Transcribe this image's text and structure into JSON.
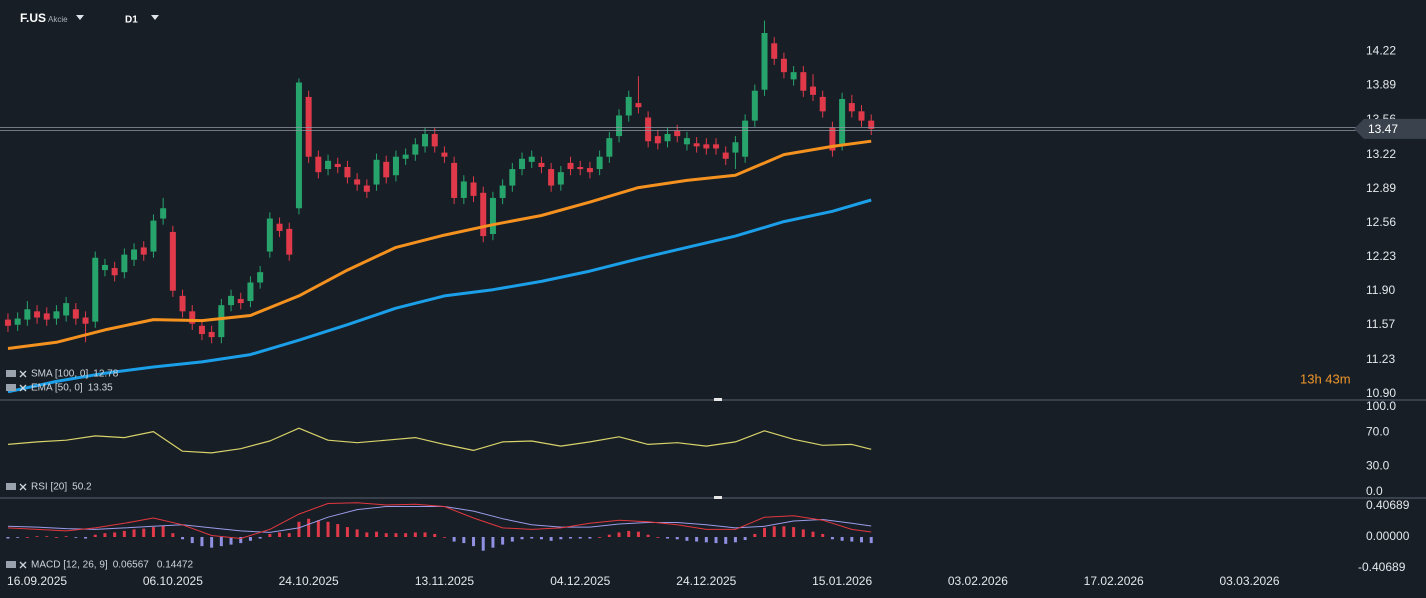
{
  "header": {
    "symbol": "F.US",
    "asset_type": "Akcie",
    "timeframe": "D1"
  },
  "chart_data": [
    {
      "type": "candlestick",
      "open": [
        11.62,
        11.57,
        11.62,
        11.7,
        11.68,
        11.63,
        11.66,
        11.72,
        11.64,
        11.6,
        12.1,
        12.12,
        12.08,
        12.2,
        12.32,
        12.28,
        12.6,
        12.47,
        11.85,
        11.7,
        11.56,
        11.5,
        11.45,
        11.76,
        11.82,
        11.8,
        11.98,
        12.28,
        12.55,
        12.5,
        12.7,
        13.78,
        13.2,
        13.08,
        13.13,
        13.1,
        12.98,
        12.92,
        12.93,
        13.15,
        13.02,
        13.18,
        13.22,
        13.3,
        13.42,
        13.24,
        13.14,
        12.8,
        12.95,
        12.85,
        12.45,
        12.8,
        12.92,
        13.08,
        13.15,
        13.14,
        13.08,
        12.93,
        13.14,
        13.1,
        13.09,
        13.08,
        13.2,
        13.4,
        13.6,
        13.72,
        13.58,
        13.4,
        13.35,
        13.45,
        13.32,
        13.33,
        13.32,
        13.32,
        13.24,
        13.24,
        13.2,
        13.55,
        13.85,
        14.3,
        14.15,
        13.95,
        14.02,
        13.88,
        13.78,
        13.48,
        13.32,
        13.72,
        13.64,
        13.55
      ],
      "high": [
        11.68,
        11.69,
        11.8,
        11.76,
        11.74,
        11.76,
        11.84,
        11.78,
        11.7,
        12.28,
        12.21,
        12.18,
        12.31,
        12.36,
        12.38,
        12.64,
        12.8,
        12.53,
        11.91,
        11.76,
        11.62,
        11.56,
        11.82,
        11.91,
        11.88,
        12.04,
        12.14,
        12.66,
        12.61,
        12.56,
        13.96,
        13.84,
        13.26,
        13.22,
        13.19,
        13.16,
        13.04,
        12.98,
        13.23,
        13.21,
        13.26,
        13.28,
        13.38,
        13.48,
        13.48,
        13.3,
        13.2,
        13.02,
        13.01,
        12.91,
        12.86,
        12.98,
        13.14,
        13.24,
        13.26,
        13.2,
        13.14,
        13.11,
        13.2,
        13.16,
        13.15,
        13.26,
        13.44,
        13.66,
        13.84,
        13.98,
        13.64,
        13.46,
        13.48,
        13.51,
        13.44,
        13.39,
        13.38,
        13.38,
        13.3,
        13.4,
        13.61,
        13.9,
        14.52,
        14.36,
        14.21,
        14.08,
        14.08,
        14.0,
        13.84,
        13.54,
        13.82,
        13.8,
        13.7,
        13.61
      ],
      "low": [
        11.5,
        11.51,
        11.56,
        11.58,
        11.56,
        11.57,
        11.6,
        11.57,
        11.4,
        11.54,
        12.04,
        11.99,
        12.02,
        12.14,
        12.19,
        12.22,
        12.54,
        11.84,
        11.64,
        11.52,
        11.42,
        11.39,
        11.39,
        11.7,
        11.72,
        11.74,
        11.92,
        12.22,
        12.42,
        12.19,
        12.64,
        13.14,
        12.99,
        13.02,
        13.04,
        12.94,
        12.87,
        12.8,
        12.87,
        12.94,
        12.96,
        13.12,
        13.16,
        13.24,
        13.24,
        13.14,
        12.74,
        12.74,
        12.76,
        12.37,
        12.39,
        12.74,
        12.86,
        13.02,
        13.09,
        13.04,
        12.86,
        12.87,
        13.02,
        13.02,
        12.99,
        13.02,
        13.14,
        13.34,
        13.54,
        13.62,
        13.29,
        13.27,
        13.29,
        13.34,
        13.26,
        13.24,
        13.22,
        13.22,
        13.12,
        13.08,
        13.14,
        13.49,
        13.79,
        14.09,
        13.96,
        13.89,
        13.78,
        13.74,
        13.58,
        13.2,
        13.26,
        13.58,
        13.49,
        13.41
      ],
      "close": [
        11.56,
        11.63,
        11.72,
        11.64,
        11.62,
        11.7,
        11.78,
        11.63,
        11.58,
        12.22,
        12.15,
        12.05,
        12.25,
        12.3,
        12.25,
        12.58,
        12.7,
        11.9,
        11.7,
        11.58,
        11.48,
        11.45,
        11.76,
        11.85,
        11.78,
        11.98,
        12.08,
        12.6,
        12.48,
        12.25,
        13.92,
        13.2,
        13.05,
        13.16,
        13.1,
        13.0,
        12.93,
        12.86,
        13.17,
        13.0,
        13.2,
        13.22,
        13.32,
        13.42,
        13.3,
        13.2,
        12.8,
        12.96,
        12.82,
        12.43,
        12.8,
        12.92,
        13.08,
        13.18,
        13.2,
        13.1,
        12.92,
        13.05,
        13.08,
        13.08,
        13.05,
        13.2,
        13.38,
        13.6,
        13.78,
        13.68,
        13.35,
        13.33,
        13.42,
        13.4,
        13.38,
        13.3,
        13.28,
        13.28,
        13.18,
        13.34,
        13.55,
        13.84,
        14.4,
        14.15,
        14.02,
        14.02,
        13.84,
        13.8,
        13.64,
        13.26,
        13.76,
        13.64,
        13.55,
        13.47
      ],
      "colors": {
        "up": "#27a46c",
        "down": "#e03a4a"
      },
      "xlim": [
        -0.82,
        143
      ],
      "xticks": [
        {
          "value": 3,
          "label": "16.09.2025"
        },
        {
          "value": 17,
          "label": "06.10.2025"
        },
        {
          "value": 31,
          "label": "24.10.2025"
        },
        {
          "value": 45,
          "label": "13.11.2025"
        },
        {
          "value": 59,
          "label": "04.12.2025"
        },
        {
          "value": 72,
          "label": "24.12.2025"
        },
        {
          "value": 86,
          "label": "15.01.2026"
        },
        {
          "value": 100,
          "label": "03.02.2026"
        },
        {
          "value": 114,
          "label": "17.02.2026"
        },
        {
          "value": 128,
          "label": "03.03.2026"
        }
      ],
      "ylim": [
        10.84,
        14.72
      ],
      "yticks": [
        14.22,
        13.89,
        13.56,
        13.22,
        12.89,
        12.56,
        12.23,
        {
          "value": 11.9,
          "label": "11.90"
        },
        11.57,
        11.23,
        {
          "value": 10.9,
          "label": "10.90"
        }
      ],
      "grid": true,
      "series": [
        {
          "name": "SMA [100, 0]",
          "color": "#1a9fe8",
          "x": [
            0,
            5,
            10,
            15,
            20,
            25,
            30,
            35,
            40,
            45,
            50,
            55,
            60,
            65,
            70,
            75,
            80,
            85,
            89
          ],
          "values": [
            10.92,
            11.02,
            11.1,
            11.16,
            11.21,
            11.28,
            11.42,
            11.57,
            11.73,
            11.85,
            11.91,
            11.99,
            12.09,
            12.21,
            12.32,
            12.43,
            12.57,
            12.67,
            12.78
          ]
        },
        {
          "name": "EMA [50, 0]",
          "color": "#f5921f",
          "x": [
            0,
            5,
            10,
            15,
            20,
            25,
            30,
            35,
            40,
            45,
            50,
            55,
            60,
            65,
            70,
            75,
            80,
            85,
            89
          ],
          "values": [
            11.34,
            11.4,
            11.52,
            11.62,
            11.61,
            11.66,
            11.85,
            12.1,
            12.32,
            12.44,
            12.54,
            12.63,
            12.76,
            12.9,
            12.97,
            13.02,
            13.22,
            13.3,
            13.35
          ]
        }
      ],
      "countdown": "13h 43m"
    },
    {
      "type": "line",
      "ylim": [
        -7,
        108.2
      ],
      "yticks": [
        {
          "value": 100,
          "label": "100.0"
        },
        {
          "value": 70,
          "label": "70.0"
        },
        {
          "value": 30,
          "label": "30.0"
        },
        {
          "value": 0,
          "label": "0.0"
        }
      ],
      "series": [
        {
          "name": "RSI [20]",
          "color": "#d8d26a",
          "x": [
            0,
            3,
            6,
            9,
            12,
            15,
            18,
            21,
            24,
            27,
            30,
            33,
            36,
            39,
            42,
            45,
            48,
            51,
            54,
            57,
            60,
            63,
            66,
            69,
            72,
            75,
            78,
            81,
            84,
            87,
            89
          ],
          "values": [
            56,
            59,
            61,
            66,
            64,
            71,
            48,
            46,
            51,
            60,
            75,
            61,
            58,
            61,
            64,
            56,
            49,
            59,
            60,
            54,
            59,
            65,
            56,
            58,
            54,
            59,
            72,
            62,
            55,
            56,
            50.2
          ]
        }
      ]
    },
    {
      "type": "macd",
      "name": "MACD [12, 26, 9]",
      "ylim": [
        -0.4988,
        0.5119
      ],
      "yticks": [
        0.40689,
        {
          "value": 0,
          "label": "0.00000"
        },
        -0.40689
      ],
      "histogram": [
        -0.02,
        -0.01,
        0.0,
        0.01,
        0.01,
        0.0,
        0.01,
        -0.01,
        -0.02,
        0.03,
        0.05,
        0.06,
        0.08,
        0.1,
        0.11,
        0.13,
        0.15,
        0.05,
        -0.03,
        -0.08,
        -0.12,
        -0.14,
        -0.12,
        -0.1,
        -0.08,
        -0.05,
        -0.02,
        0.04,
        0.06,
        0.05,
        0.2,
        0.24,
        0.22,
        0.2,
        0.17,
        0.13,
        0.1,
        0.06,
        0.07,
        0.05,
        0.05,
        0.05,
        0.06,
        0.06,
        0.04,
        0.0,
        -0.06,
        -0.08,
        -0.12,
        -0.18,
        -0.14,
        -0.1,
        -0.06,
        -0.03,
        -0.02,
        -0.03,
        -0.05,
        -0.03,
        -0.02,
        -0.02,
        -0.02,
        0.0,
        0.03,
        0.06,
        0.08,
        0.07,
        0.03,
        0.0,
        -0.02,
        -0.03,
        -0.05,
        -0.06,
        -0.07,
        -0.08,
        -0.09,
        -0.07,
        -0.04,
        0.04,
        0.12,
        0.14,
        0.14,
        0.13,
        0.1,
        0.07,
        0.04,
        -0.03,
        -0.05,
        -0.06,
        -0.07,
        -0.08
      ],
      "histogram_colors": {
        "up": "#e03a4a",
        "down": "#8f90e2"
      },
      "x": [
        0,
        3,
        6,
        9,
        12,
        15,
        18,
        21,
        24,
        27,
        30,
        33,
        36,
        39,
        42,
        45,
        48,
        51,
        54,
        57,
        60,
        63,
        66,
        69,
        72,
        75,
        78,
        81,
        84,
        87,
        89
      ],
      "macd": {
        "color": "#e2383f",
        "values": [
          0.12,
          0.1,
          0.08,
          0.12,
          0.18,
          0.25,
          0.16,
          0.02,
          -0.02,
          0.1,
          0.3,
          0.44,
          0.45,
          0.42,
          0.43,
          0.4,
          0.25,
          0.12,
          0.1,
          0.12,
          0.18,
          0.22,
          0.2,
          0.16,
          0.1,
          0.1,
          0.26,
          0.28,
          0.22,
          0.1,
          0.06567
        ]
      },
      "signal": {
        "color": "#9a9ce8",
        "values": [
          0.14,
          0.13,
          0.11,
          0.1,
          0.12,
          0.14,
          0.16,
          0.12,
          0.08,
          0.06,
          0.12,
          0.26,
          0.36,
          0.4,
          0.4,
          0.4,
          0.34,
          0.24,
          0.16,
          0.13,
          0.13,
          0.17,
          0.19,
          0.19,
          0.16,
          0.12,
          0.14,
          0.21,
          0.23,
          0.18,
          0.14472
        ]
      }
    }
  ]
}
